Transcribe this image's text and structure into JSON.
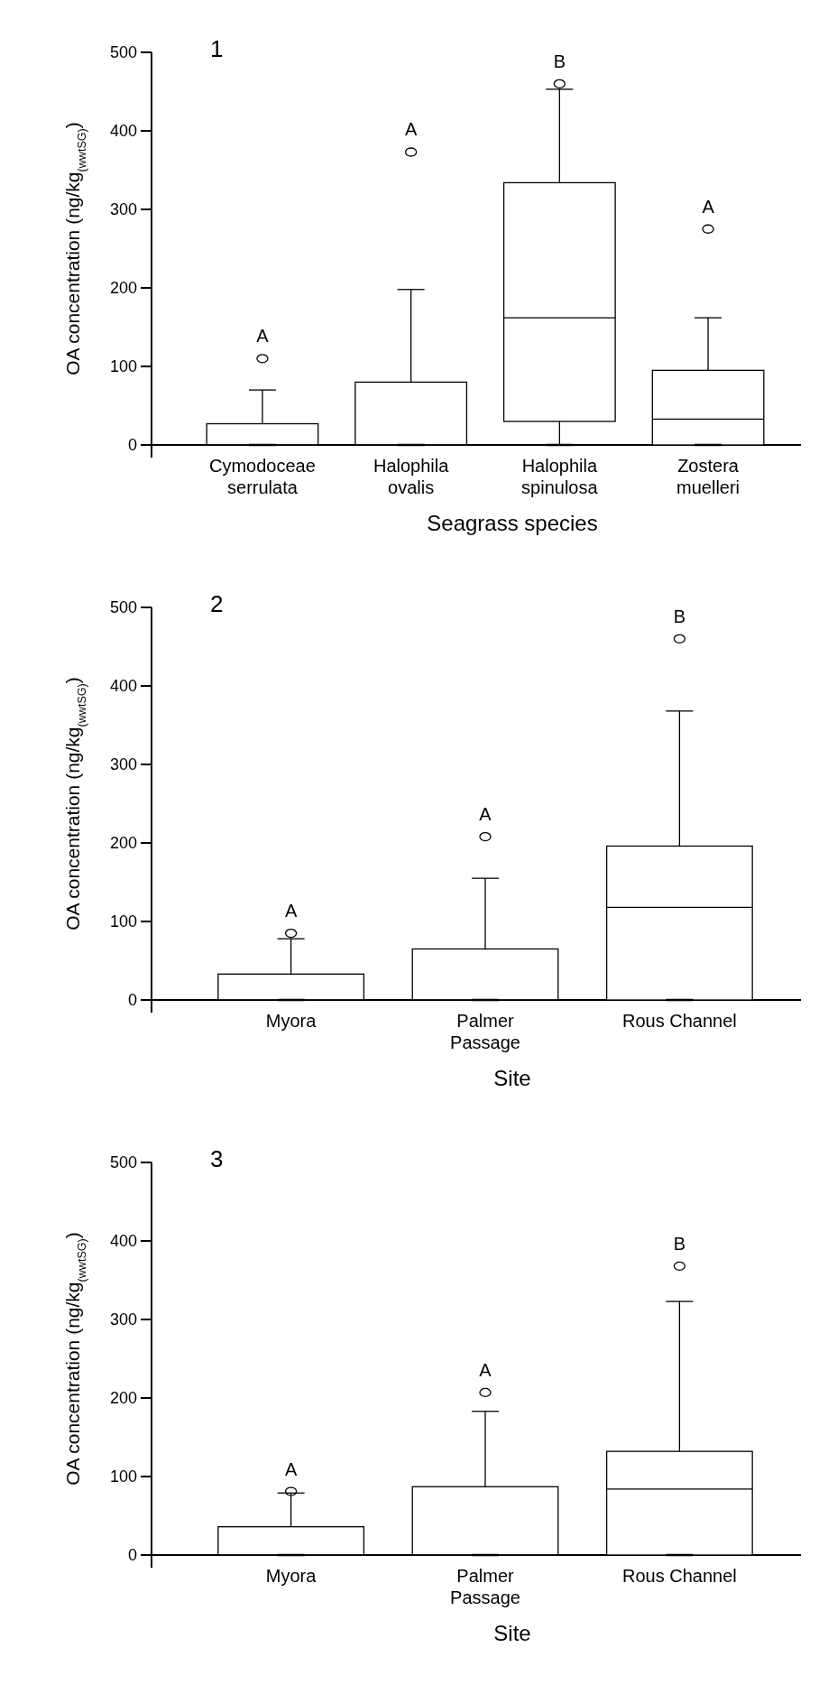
{
  "chart_data": [
    {
      "type": "box",
      "title": "1",
      "xlabel": "Seagrass species",
      "ylabel": "OA concentration (ng/kg$_{(wwtSG)}$)",
      "categories": [
        "Cymodoceae serrulata",
        "Halophila ovalis",
        "Halophila spinulosa",
        "Zostera muelleri"
      ],
      "boxes": [
        {
          "low": 0,
          "q1": 0,
          "median": 0,
          "q3": 27,
          "high": 70,
          "outliers": [
            110
          ]
        },
        {
          "low": 0,
          "q1": 0,
          "median": 0,
          "q3": 80,
          "high": 198,
          "outliers": [
            373
          ]
        },
        {
          "low": 0,
          "q1": 30,
          "median": 162,
          "q3": 334,
          "high": 453,
          "outliers": [
            460
          ]
        },
        {
          "low": 0,
          "q1": 0,
          "median": 33,
          "q3": 95,
          "high": 162,
          "outliers": [
            275
          ]
        }
      ],
      "ylim": [
        0,
        500
      ],
      "yticks": [
        0,
        100,
        200,
        300,
        400,
        500
      ],
      "annotations": [
        "A",
        "A",
        "B",
        "A"
      ]
    },
    {
      "type": "box",
      "title": "2",
      "xlabel": "Site",
      "ylabel": "OA concentration (ng/kg$_{(wwtSG)}$)",
      "categories": [
        "Myora",
        "Palmer Passage",
        "Rous Channel"
      ],
      "boxes": [
        {
          "low": 0,
          "q1": 0,
          "median": 0,
          "q3": 33,
          "high": 78,
          "outliers": [
            85
          ]
        },
        {
          "low": 0,
          "q1": 0,
          "median": 0,
          "q3": 65,
          "high": 155,
          "outliers": [
            208
          ]
        },
        {
          "low": 0,
          "q1": 0,
          "median": 118,
          "q3": 196,
          "high": 368,
          "outliers": [
            460
          ]
        }
      ],
      "ylim": [
        0,
        500
      ],
      "yticks": [
        0,
        100,
        200,
        300,
        400,
        500
      ],
      "annotations": [
        "A",
        "A",
        "B"
      ]
    },
    {
      "type": "box",
      "title": "3",
      "xlabel": "Site",
      "ylabel": "OA concentration (ng/kg$_{(wwtSG)}$)",
      "categories": [
        "Myora",
        "Palmer Passage",
        "Rous Channel"
      ],
      "boxes": [
        {
          "low": 0,
          "q1": 0,
          "median": 0,
          "q3": 36,
          "high": 79,
          "outliers": [
            81
          ]
        },
        {
          "low": 0,
          "q1": 0,
          "median": 0,
          "q3": 87,
          "high": 183,
          "outliers": [
            207
          ]
        },
        {
          "low": 0,
          "q1": 0,
          "median": 84,
          "q3": 132,
          "high": 323,
          "outliers": [
            368
          ]
        }
      ],
      "ylim": [
        0,
        500
      ],
      "yticks": [
        0,
        100,
        200,
        300,
        400,
        500
      ],
      "annotations": [
        "A",
        "A",
        "B"
      ]
    }
  ]
}
